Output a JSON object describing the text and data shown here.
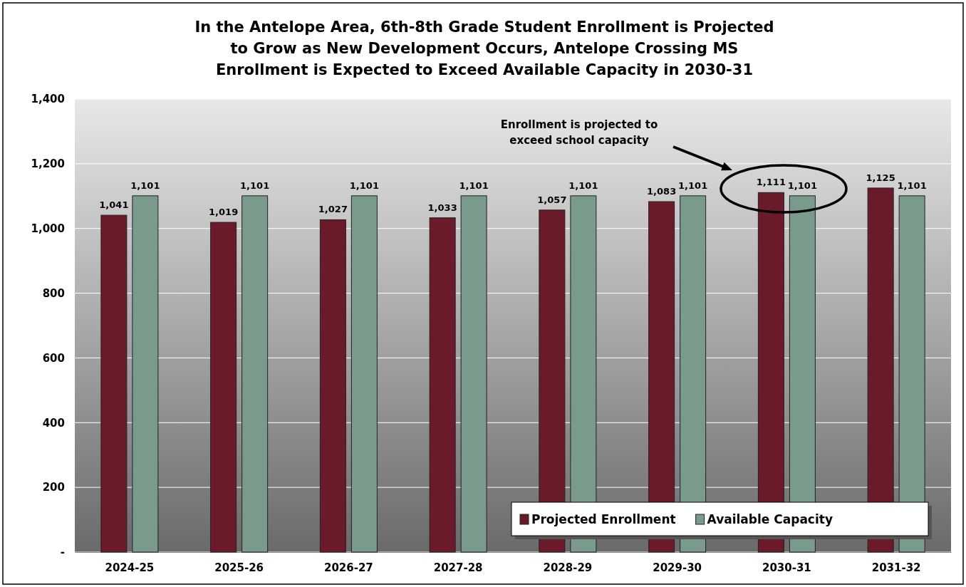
{
  "chart_data": {
    "type": "bar",
    "title": "In the Antelope Area, 6th-8th Grade Student Enrollment is Projected\nto Grow as New Development Occurs, Antelope Crossing MS\nEnrollment is Expected to Exceed Available Capacity in 2030-31",
    "categories": [
      "2024-25",
      "2025-26",
      "2026-27",
      "2027-28",
      "2028-29",
      "2029-30",
      "2030-31",
      "2031-32"
    ],
    "series": [
      {
        "name": "Projected Enrollment",
        "color": "#6b1a2a",
        "values": [
          1041,
          1019,
          1027,
          1033,
          1057,
          1083,
          1111,
          1125
        ],
        "value_labels": [
          "1,041",
          "1,019",
          "1,027",
          "1,033",
          "1,057",
          "1,083",
          "1,111",
          "1,125"
        ]
      },
      {
        "name": "Available Capacity",
        "color": "#7a9a8c",
        "values": [
          1101,
          1101,
          1101,
          1101,
          1101,
          1101,
          1101,
          1101
        ],
        "value_labels": [
          "1,101",
          "1,101",
          "1,101",
          "1,101",
          "1,101",
          "1,101",
          "1,101",
          "1,101"
        ]
      }
    ],
    "ylim": [
      0,
      1400
    ],
    "yticks": [
      {
        "value": 0,
        "label": "-"
      },
      {
        "value": 200,
        "label": "200"
      },
      {
        "value": 400,
        "label": "400"
      },
      {
        "value": 600,
        "label": "600"
      },
      {
        "value": 800,
        "label": "800"
      },
      {
        "value": 1000,
        "label": "1,000"
      },
      {
        "value": 1200,
        "label": "1,200"
      },
      {
        "value": 1400,
        "label": "1,400"
      }
    ],
    "grid": "y",
    "legend": "bottom right",
    "annotations": [
      "Enrollment is projected to\nexceed school capacity"
    ]
  }
}
